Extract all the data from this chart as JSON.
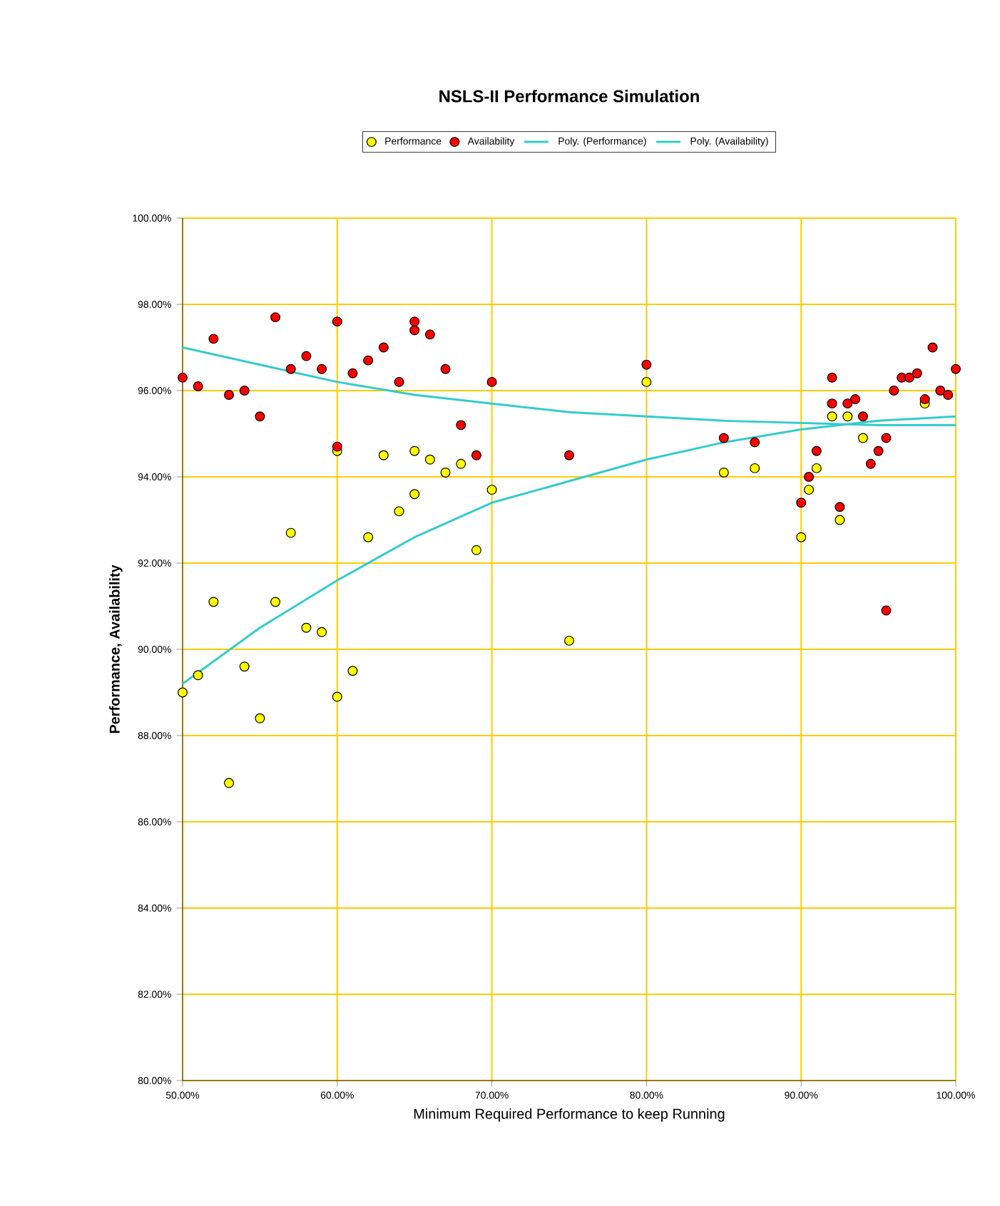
{
  "chart_data": {
    "type": "scatter",
    "title": "NSLS-II Performance Simulation",
    "xlabel": "Minimum Required Performance to keep Running",
    "ylabel": "Performance, Availability",
    "xlim": [
      50,
      100
    ],
    "ylim": [
      80,
      100
    ],
    "xticks": [
      {
        "value": 50,
        "label": "50.00%"
      },
      {
        "value": 60,
        "label": "60.00%"
      },
      {
        "value": 70,
        "label": "70.00%"
      },
      {
        "value": 80,
        "label": "80.00%"
      },
      {
        "value": 90,
        "label": "90.00%"
      },
      {
        "value": 100,
        "label": "100.00%"
      }
    ],
    "yticks": [
      {
        "value": 80,
        "label": "80.00%"
      },
      {
        "value": 82,
        "label": "82.00%"
      },
      {
        "value": 84,
        "label": "84.00%"
      },
      {
        "value": 86,
        "label": "86.00%"
      },
      {
        "value": 88,
        "label": "88.00%"
      },
      {
        "value": 90,
        "label": "90.00%"
      },
      {
        "value": 92,
        "label": "92.00%"
      },
      {
        "value": 94,
        "label": "94.00%"
      },
      {
        "value": 96,
        "label": "96.00%"
      },
      {
        "value": 98,
        "label": "98.00%"
      },
      {
        "value": 100,
        "label": "100.00%"
      }
    ],
    "grid": true,
    "legend": "top",
    "series": [
      {
        "name": "Performance",
        "marker": "circle",
        "color": "#ffff00",
        "x": [
          50,
          51,
          52,
          53,
          54,
          55,
          56,
          57,
          58,
          59,
          60,
          60,
          61,
          62,
          63,
          64,
          65,
          65,
          66,
          67,
          68,
          69,
          70,
          75,
          80,
          85,
          87,
          90,
          90.5,
          91,
          92,
          92.5,
          93,
          94,
          98
        ],
        "values": [
          89.0,
          89.4,
          91.1,
          86.9,
          89.6,
          88.4,
          91.1,
          92.7,
          90.5,
          90.4,
          88.9,
          94.6,
          89.5,
          92.6,
          94.5,
          93.2,
          93.6,
          94.6,
          94.4,
          94.1,
          94.3,
          92.3,
          93.7,
          90.2,
          96.2,
          94.1,
          94.2,
          92.6,
          93.7,
          94.2,
          95.4,
          93.0,
          95.4,
          94.9,
          95.7
        ]
      },
      {
        "name": "Availability",
        "marker": "circle",
        "color": "#ff0000",
        "x": [
          50,
          51,
          52,
          53,
          54,
          55,
          56,
          57,
          58,
          59,
          60,
          60,
          61,
          62,
          63,
          64,
          65,
          65,
          66,
          67,
          68,
          69,
          70,
          75,
          80,
          85,
          87,
          90,
          90.5,
          91,
          92,
          92,
          92.5,
          93,
          93.5,
          94,
          94.5,
          95,
          95.5,
          95.5,
          96,
          96.5,
          97,
          97.5,
          98,
          98.5,
          99,
          99.5,
          100
        ],
        "values": [
          96.3,
          96.1,
          97.2,
          95.9,
          96.0,
          95.4,
          97.7,
          96.5,
          96.8,
          96.5,
          97.6,
          94.7,
          96.4,
          96.7,
          97.0,
          96.2,
          97.6,
          97.4,
          97.3,
          96.5,
          95.2,
          94.5,
          96.2,
          94.5,
          96.6,
          94.9,
          94.8,
          93.4,
          94.0,
          94.6,
          96.3,
          95.7,
          93.3,
          95.7,
          95.8,
          95.4,
          94.3,
          94.6,
          94.9,
          90.9,
          96.0,
          96.3,
          96.3,
          96.4,
          95.8,
          97.0,
          96.0,
          95.9,
          96.5
        ]
      },
      {
        "name": "Poly. (Performance)",
        "type": "line",
        "marker": "none",
        "color": "#33cccc",
        "x": [
          50,
          55,
          60,
          65,
          70,
          75,
          80,
          85,
          90,
          95,
          100
        ],
        "values": [
          89.2,
          90.5,
          91.6,
          92.6,
          93.4,
          93.9,
          94.4,
          94.8,
          95.1,
          95.3,
          95.4
        ]
      },
      {
        "name": "Poly. (Availability)",
        "type": "line",
        "marker": "none",
        "color": "#33cccc",
        "x": [
          50,
          55,
          60,
          65,
          70,
          75,
          80,
          85,
          90,
          95,
          100
        ],
        "values": [
          97.0,
          96.6,
          96.2,
          95.9,
          95.7,
          95.5,
          95.4,
          95.3,
          95.25,
          95.2,
          95.2
        ]
      }
    ]
  }
}
